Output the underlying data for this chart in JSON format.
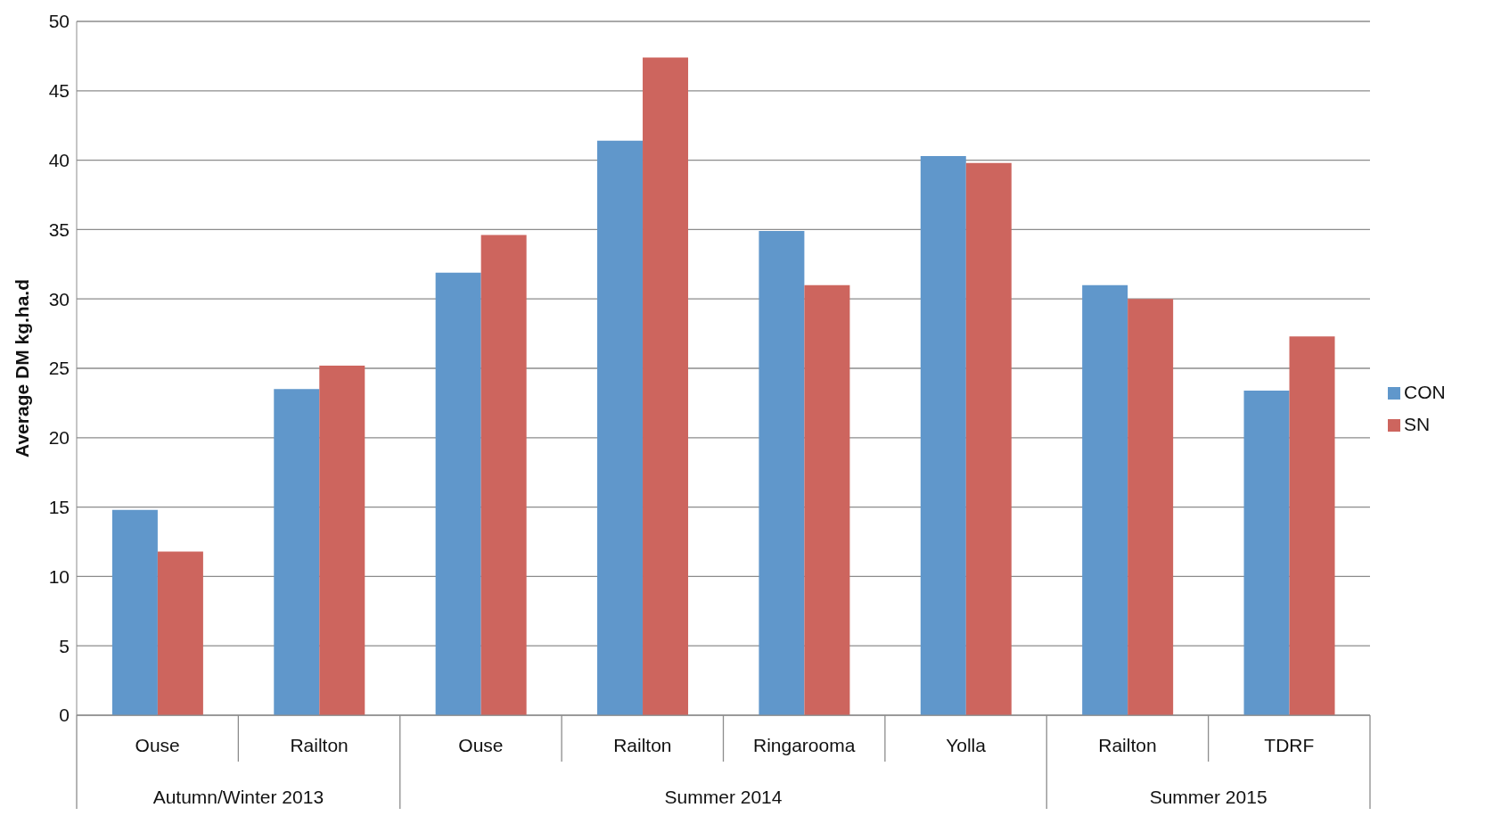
{
  "chart_data": {
    "type": "bar",
    "ylabel": "Average DM kg.ha.d",
    "categories": [
      "Ouse",
      "Railton",
      "Ouse",
      "Railton",
      "Ringarooma",
      "Yolla",
      "Railton",
      "TDRF"
    ],
    "series": [
      {
        "name": "CON",
        "color": "#6097cb",
        "values": [
          14.8,
          23.5,
          31.9,
          41.4,
          34.9,
          40.3,
          31.0,
          23.4
        ]
      },
      {
        "name": "SN",
        "color": "#cd655e",
        "values": [
          11.8,
          25.2,
          34.6,
          47.4,
          31.0,
          39.8,
          30.0,
          27.3
        ]
      }
    ],
    "annotations": [
      "Autumn/Winter 2013",
      "Summer 2014",
      "Summer 2015"
    ],
    "ylim": [
      0,
      50
    ],
    "yticks": [
      0,
      5,
      10,
      15,
      20,
      25,
      30,
      35,
      40,
      45,
      50
    ],
    "grid": "y",
    "legend": "right"
  }
}
